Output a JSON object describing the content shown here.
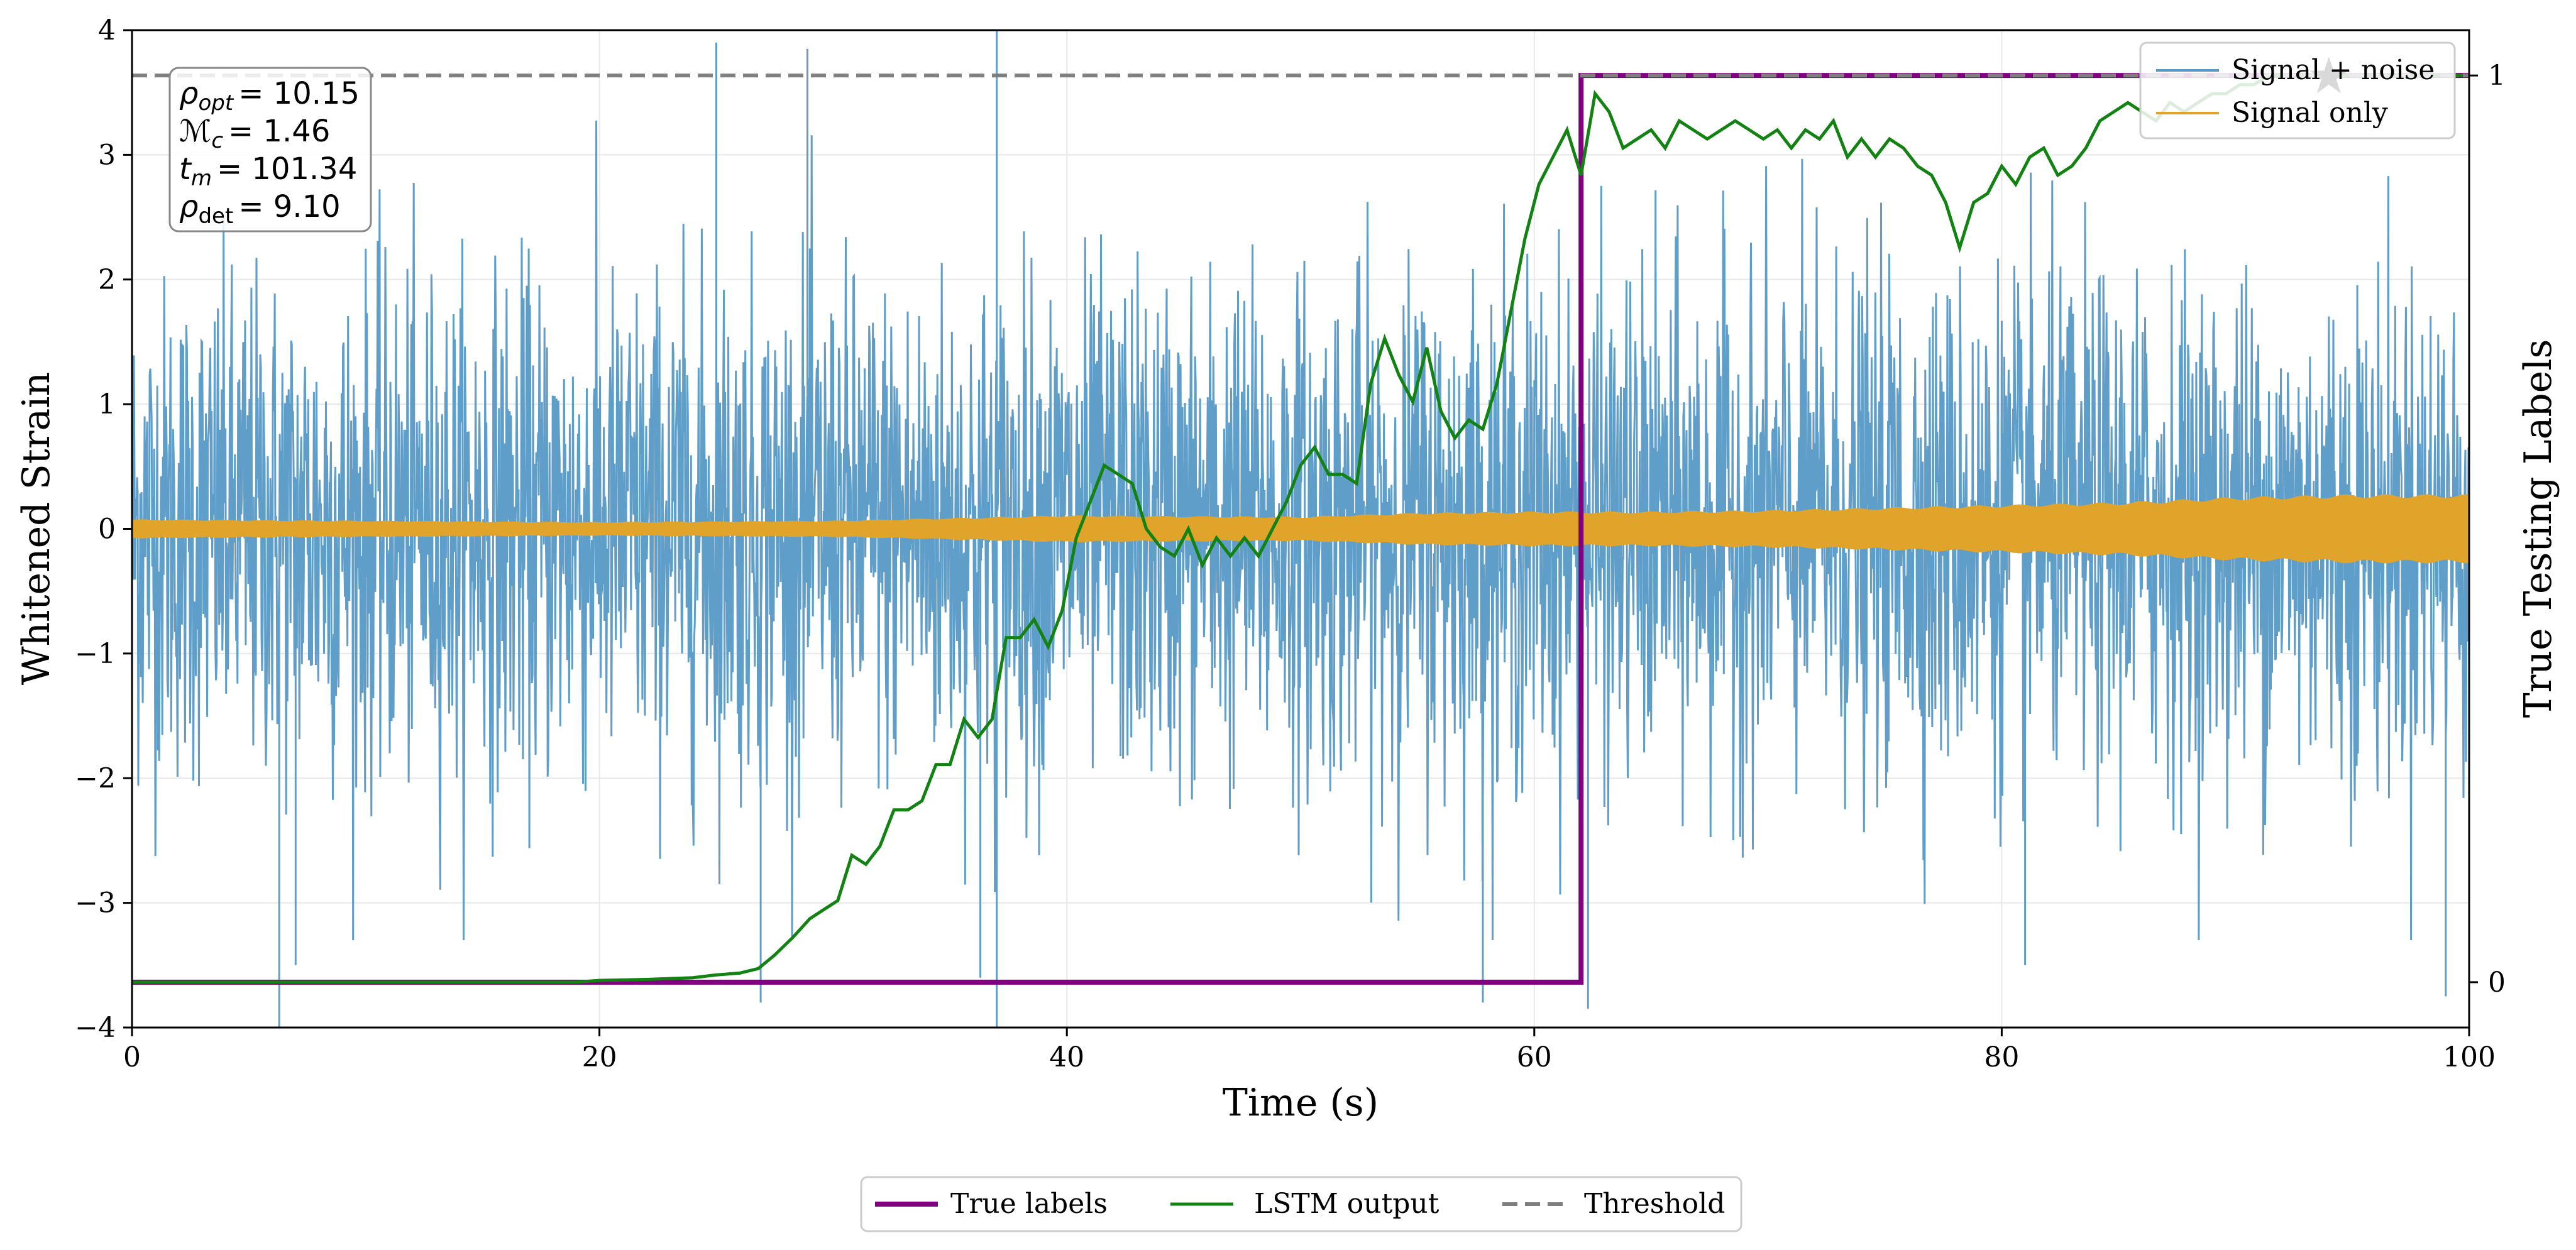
{
  "chart_data": {
    "type": "line",
    "xlabel": "Time (s)",
    "ylabel": "Whitened Strain",
    "y2label": "True Testing Labels",
    "xlim": [
      0,
      100
    ],
    "ylim": [
      -4,
      4
    ],
    "y2lim": [
      -0.05,
      1.05
    ],
    "x_ticks": [
      0,
      20,
      40,
      60,
      80,
      100
    ],
    "x_tick_labels": [
      "0",
      "20",
      "40",
      "60",
      "80",
      "100"
    ],
    "y_ticks": [
      -4,
      -3,
      -2,
      -1,
      0,
      1,
      2,
      3,
      4
    ],
    "y_tick_labels": [
      "−4",
      "−3",
      "−2",
      "−1",
      "0",
      "1",
      "2",
      "3",
      "4"
    ],
    "y2_ticks": [
      0,
      1
    ],
    "y2_tick_labels": [
      "0",
      "1"
    ],
    "grid": true,
    "annotation": {
      "rho_opt_label": "ρ",
      "rho_opt_sub": "opt",
      "rho_opt_value": "= 10.15",
      "mc_label": "ℳ",
      "mc_sub": "c",
      "mc_value": "= 1.46",
      "tm_label": "t",
      "tm_sub": "m",
      "tm_value": "= 101.34",
      "rho_det_label": "ρ",
      "rho_det_sub": "det",
      "rho_det_value": "= 9.10"
    },
    "signal_noise": {
      "name": "Signal + noise",
      "color": "#5799c7",
      "description_level": "noise amplitude roughly ±2.5 with spikes to ±3.9",
      "spikes": [
        {
          "x": 6.3,
          "y": -4.0
        },
        {
          "x": 25.0,
          "y": 3.9
        },
        {
          "x": 28.9,
          "y": 3.85
        },
        {
          "x": 37.0,
          "y": 4.0
        },
        {
          "x": 37.0,
          "y": -4.0
        },
        {
          "x": 26.9,
          "y": -3.8
        },
        {
          "x": 57.8,
          "y": -3.8
        },
        {
          "x": 62.3,
          "y": -3.85
        },
        {
          "x": 99.0,
          "y": -3.75
        },
        {
          "x": 7.0,
          "y": -3.5
        },
        {
          "x": 81.0,
          "y": -3.5
        },
        {
          "x": 36.3,
          "y": -3.6
        }
      ]
    },
    "signal_only": {
      "name": "Signal only",
      "color": "#e0a42a",
      "envelope_x": [
        0,
        10,
        20,
        30,
        40,
        50,
        55,
        60,
        65,
        70,
        75,
        80,
        85,
        90,
        95,
        100
      ],
      "envelope_y": [
        0.07,
        0.06,
        0.05,
        0.06,
        0.1,
        0.09,
        0.12,
        0.13,
        0.13,
        0.14,
        0.16,
        0.18,
        0.2,
        0.24,
        0.26,
        0.26
      ]
    },
    "true_labels": {
      "name": "True labels",
      "color": "#800080",
      "x": [
        0,
        62,
        62,
        100
      ],
      "y": [
        0,
        0,
        1,
        1
      ]
    },
    "lstm_output": {
      "name": "LSTM output",
      "color": "#128212",
      "x": [
        0,
        10,
        19,
        20,
        22,
        24,
        25,
        26,
        26.8,
        27.5,
        28.3,
        29,
        29.6,
        30.2,
        30.8,
        31.4,
        32,
        32.6,
        33.2,
        33.8,
        34.4,
        35,
        35.6,
        36.2,
        36.8,
        37.4,
        38,
        38.6,
        39.2,
        39.8,
        40.4,
        41,
        41.6,
        42.2,
        42.8,
        43.4,
        44,
        44.6,
        45.2,
        45.8,
        46.4,
        47,
        47.6,
        48.2,
        48.8,
        49.4,
        50,
        50.6,
        51.2,
        51.8,
        52.4,
        53,
        53.6,
        54.2,
        54.8,
        55.4,
        56,
        56.6,
        57.2,
        57.8,
        58.4,
        59,
        59.6,
        60.2,
        60.8,
        61.4,
        62,
        62.6,
        63.2,
        63.8,
        64.4,
        65,
        65.6,
        66.2,
        66.8,
        67.4,
        68,
        68.6,
        69.2,
        69.8,
        70.4,
        71,
        71.6,
        72.2,
        72.8,
        73.4,
        74,
        74.6,
        75.2,
        75.8,
        76.4,
        77,
        77.6,
        78.2,
        78.8,
        79.4,
        80,
        80.6,
        81.2,
        81.8,
        82.4,
        83,
        83.6,
        84.2,
        84.8,
        85.4,
        86,
        86.6,
        87.2,
        87.8,
        88.4,
        89,
        89.6,
        90.2,
        90.8,
        91.4,
        92,
        92.6,
        93.2,
        93.8,
        94.4,
        95,
        96,
        97,
        98,
        99,
        100
      ],
      "y": [
        0.0,
        0.0,
        0.0,
        0.002,
        0.003,
        0.005,
        0.008,
        0.01,
        0.015,
        0.03,
        0.05,
        0.07,
        0.08,
        0.09,
        0.14,
        0.13,
        0.15,
        0.19,
        0.19,
        0.2,
        0.24,
        0.24,
        0.29,
        0.27,
        0.29,
        0.38,
        0.38,
        0.4,
        0.37,
        0.41,
        0.49,
        0.53,
        0.57,
        0.56,
        0.55,
        0.5,
        0.48,
        0.47,
        0.5,
        0.46,
        0.49,
        0.47,
        0.49,
        0.47,
        0.5,
        0.53,
        0.57,
        0.59,
        0.56,
        0.56,
        0.55,
        0.66,
        0.71,
        0.67,
        0.64,
        0.7,
        0.63,
        0.6,
        0.62,
        0.61,
        0.66,
        0.74,
        0.82,
        0.88,
        0.91,
        0.94,
        0.89,
        0.98,
        0.96,
        0.92,
        0.93,
        0.94,
        0.92,
        0.95,
        0.94,
        0.93,
        0.94,
        0.95,
        0.94,
        0.93,
        0.94,
        0.92,
        0.94,
        0.93,
        0.95,
        0.91,
        0.93,
        0.91,
        0.93,
        0.92,
        0.9,
        0.89,
        0.86,
        0.81,
        0.86,
        0.87,
        0.9,
        0.88,
        0.91,
        0.92,
        0.89,
        0.9,
        0.92,
        0.95,
        0.96,
        0.97,
        0.96,
        0.95,
        0.97,
        0.96,
        0.97,
        0.98,
        0.98,
        0.99,
        0.99,
        1.0,
        1.0,
        1.0,
        1.0,
        1.0,
        1.0,
        1.0,
        1.0,
        1.0,
        1.0,
        1.0,
        1.0
      ]
    },
    "threshold": {
      "name": "Threshold",
      "color": "#7f7f7f",
      "y2": 1.0
    },
    "detection_marker": {
      "name": "detection-star",
      "x": 94,
      "y2": 1.0
    },
    "legend_upper": {
      "placement": "top-right",
      "items": [
        "Signal + noise",
        "Signal only"
      ]
    },
    "legend_lower": {
      "placement": "bottom-center",
      "items": [
        "True labels",
        "LSTM output",
        "Threshold"
      ]
    }
  }
}
